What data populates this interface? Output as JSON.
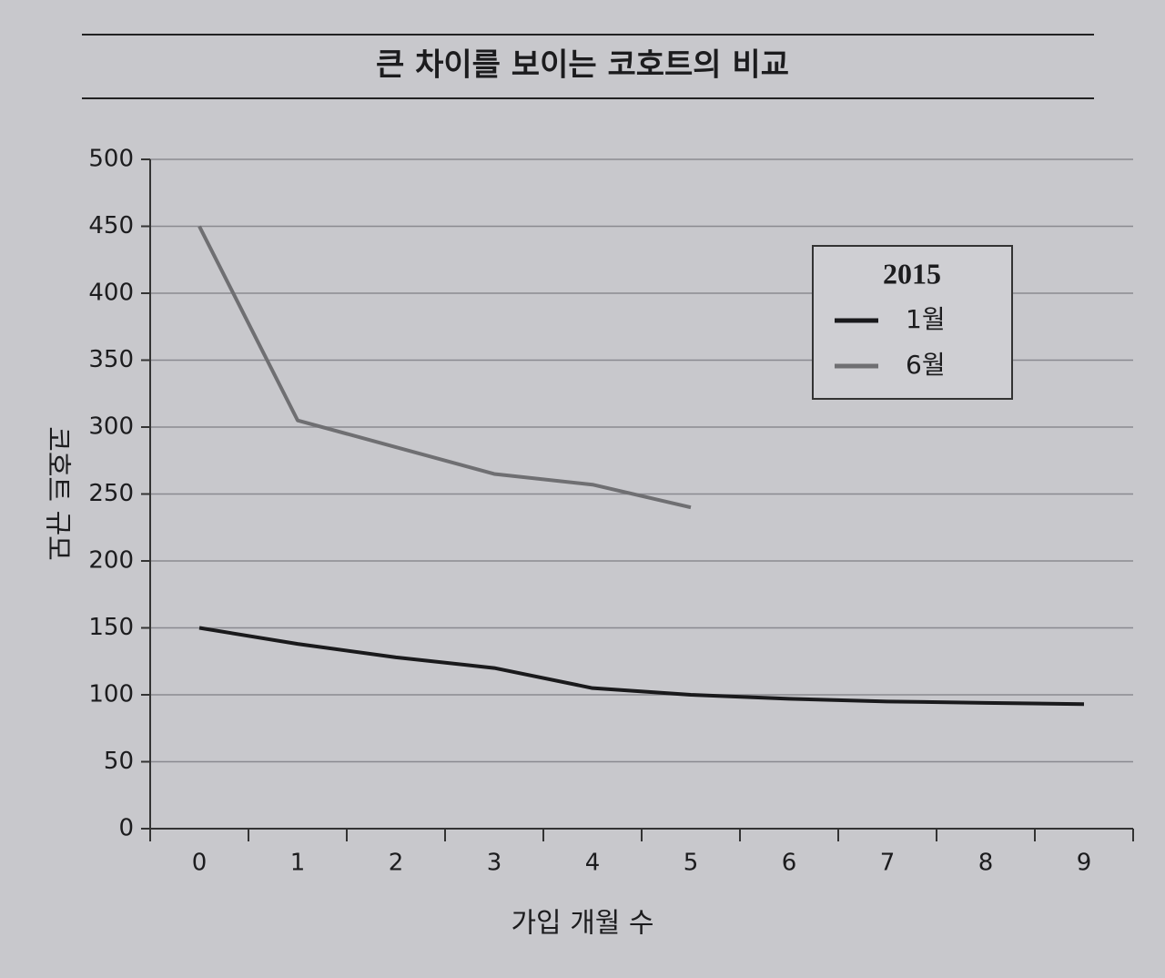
{
  "chart_data": {
    "type": "line",
    "title": "큰 차이를 보이는 코호트의 비교",
    "x_label": "가입 개월 수",
    "y_label": "코호트 규모",
    "legend_title": "2015",
    "categories": [
      "0",
      "1",
      "2",
      "3",
      "4",
      "5",
      "6",
      "7",
      "8",
      "9"
    ],
    "series": [
      {
        "name": "1월",
        "color": "#1a1a1c",
        "values": [
          150,
          138,
          128,
          120,
          105,
          100,
          97,
          95,
          94,
          93
        ]
      },
      {
        "name": "6월",
        "color": "#6f6f72",
        "values": [
          450,
          305,
          285,
          265,
          257,
          240,
          null,
          null,
          null,
          null
        ]
      }
    ],
    "ylim": [
      0,
      500
    ],
    "yticks": [
      0,
      50,
      100,
      150,
      200,
      250,
      300,
      350,
      400,
      450,
      500
    ],
    "grid": true,
    "legend": "upper right"
  }
}
